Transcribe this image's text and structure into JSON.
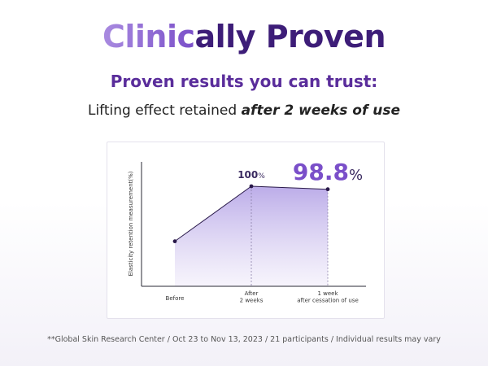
{
  "header": {
    "title_highlight": "Clinic",
    "title_rest": "ally Proven",
    "subtitle": "Proven results you can trust:",
    "tagline_prefix": "Lifting effect retained ",
    "tagline_emphasis": "after 2 weeks of use"
  },
  "chart_data": {
    "type": "area",
    "ylabel": "Elasticity retention measurement(%)",
    "categories": [
      "Before",
      "After\n2 weeks",
      "1 week\nafter cessation of use"
    ],
    "values": [
      78,
      100,
      98.8
    ],
    "value_labels": [
      "",
      "100%",
      "98.8%"
    ],
    "ylim": [
      60,
      105
    ],
    "grid": false,
    "colors": {
      "line": "#2a1a4a",
      "fill_top": "#b4a3e6",
      "fill_bottom": "#f1edfa",
      "accent": "#7a4fc9"
    }
  },
  "footnote": "**Global Skin Research Center / Oct 23 to Nov 13, 2023 / 21 participants / Individual results may vary"
}
